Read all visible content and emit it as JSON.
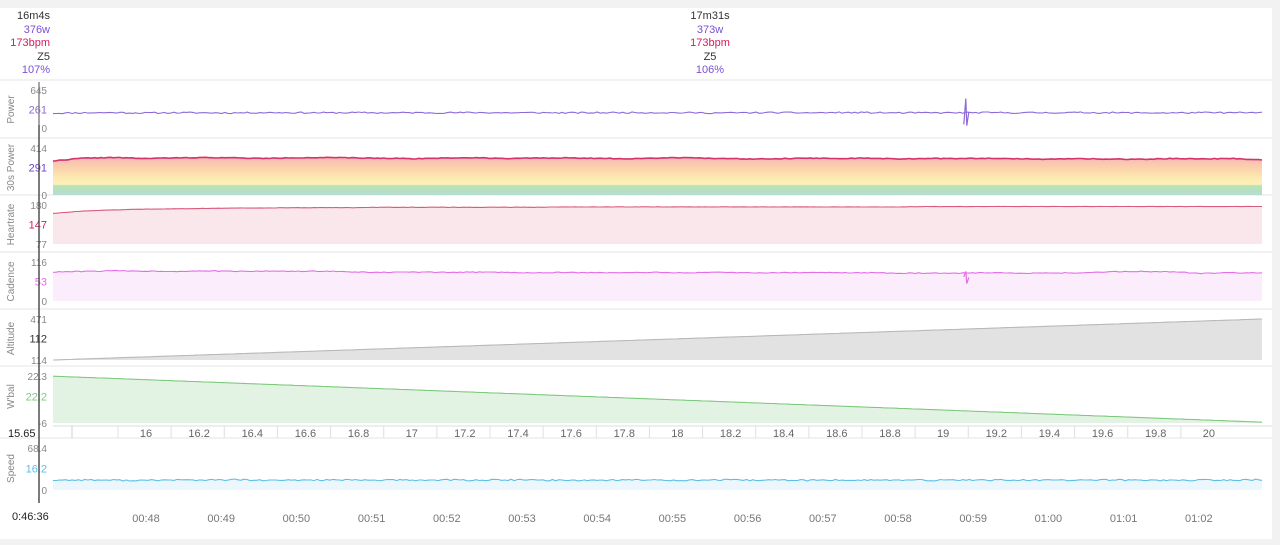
{
  "header": {
    "left": {
      "time": "16m4s",
      "power": "376w",
      "hr": "173bpm",
      "zone": "Z5",
      "pct": "107%"
    },
    "mid": {
      "time": "17m31s",
      "power": "373w",
      "hr": "173bpm",
      "zone": "Z5",
      "pct": "106%"
    }
  },
  "cursor_time_label": "0:46:36",
  "distance_cursor_label": "15.65",
  "colors": {
    "power": "#8e6ad8",
    "power30": "#d6336c",
    "heartrate": "#d95b7e",
    "cadence": "#e36ee8",
    "altitude": "#b9b9b9",
    "wbal": "#7fc97f",
    "speed": "#5bbfe6"
  },
  "chart_data": [
    {
      "type": "line",
      "key": "power",
      "ylabel": "Power",
      "ytick_top": "645",
      "ytick_bottom": "0",
      "current_value": "261",
      "ylim": [
        0,
        645
      ],
      "noise": 12,
      "seed": 11,
      "values": [
        250,
        258,
        262,
        255,
        260,
        258,
        256,
        262,
        260,
        258,
        261,
        257,
        260,
        259,
        262,
        258,
        260,
        257,
        259,
        262,
        260,
        258,
        256,
        259,
        261,
        258,
        262,
        260,
        257,
        258,
        259,
        261,
        258,
        260,
        262,
        259,
        258,
        256,
        260,
        259,
        261
      ],
      "spikes": [
        {
          "x": 0.755,
          "min": 40,
          "max": 500
        }
      ]
    },
    {
      "type": "area",
      "key": "power30",
      "ylabel": "30s Power",
      "ytick_top": "414",
      "ytick_bottom": "0",
      "current_value": "291",
      "ylim": [
        0,
        414
      ],
      "noise": 3,
      "seed": 22,
      "values": [
        300,
        325,
        330,
        322,
        326,
        330,
        327,
        322,
        328,
        330,
        326,
        324,
        320,
        326,
        328,
        322,
        325,
        327,
        323,
        320,
        326,
        329,
        322,
        318,
        320,
        325,
        322,
        324,
        318,
        322,
        320,
        324,
        319,
        315,
        320,
        316,
        314,
        322,
        318,
        322,
        310
      ]
    },
    {
      "type": "area",
      "key": "heartrate",
      "ylabel": "Heartrate",
      "ytick_top": "180",
      "ytick_bottom": "77",
      "current_value": "147",
      "ylim": [
        77,
        180
      ],
      "noise": 0.4,
      "seed": 33,
      "values": [
        158,
        164,
        167,
        169,
        170,
        171,
        172,
        172,
        173,
        173,
        173,
        174,
        174,
        174,
        174,
        174,
        174,
        175,
        175,
        175,
        175,
        175,
        175,
        175,
        175,
        175,
        175,
        175,
        175,
        176,
        176,
        176,
        176,
        176,
        176,
        176,
        176,
        176,
        176,
        176,
        176
      ]
    },
    {
      "type": "area",
      "key": "cadence",
      "ylabel": "Cadence",
      "ytick_top": "116",
      "ytick_bottom": "0",
      "current_value": "53",
      "ylim": [
        0,
        116
      ],
      "noise": 1.2,
      "seed": 44,
      "values": [
        86,
        88,
        90,
        89,
        88,
        90,
        88,
        89,
        88,
        89,
        86,
        85,
        86,
        85,
        86,
        85,
        84,
        85,
        84,
        85,
        85,
        84,
        85,
        84,
        84,
        85,
        84,
        84,
        83,
        83,
        83,
        84,
        83,
        83,
        84,
        87,
        88,
        87,
        82,
        84,
        83
      ],
      "spikes": [
        {
          "x": 0.755,
          "min": 52,
          "max": 88
        }
      ]
    },
    {
      "type": "area",
      "key": "altitude",
      "ylabel": "Altitude",
      "ytick_top": "471",
      "ytick_bottom": "114",
      "current_value": "112",
      "ylim": [
        114,
        471
      ],
      "noise": 0,
      "seed": 55,
      "values": [
        114,
        471
      ]
    },
    {
      "type": "area",
      "key": "wbal",
      "ylabel": "W'bal",
      "ytick_top": "22.3",
      "ytick_bottom": "-6",
      "current_value": "22.2",
      "ylim": [
        -6,
        22.3
      ],
      "noise": 0,
      "seed": 66,
      "values": [
        22.2,
        -5.5
      ]
    },
    {
      "type": "line",
      "key": "speed",
      "ylabel": "Speed",
      "ytick_top": "68.4",
      "ytick_bottom": "0",
      "current_value": "16.2",
      "ylim": [
        0,
        68.4
      ],
      "noise": 1.2,
      "seed": 77,
      "values": [
        16,
        16.5,
        16,
        15.5,
        16.5,
        16,
        16.8,
        15.5,
        16,
        16.5,
        16,
        16.2,
        15.8,
        16.4,
        16,
        16.5,
        16.2,
        15.8,
        16,
        16.4,
        16.2,
        15.9,
        16.3,
        16,
        16.2,
        15.8,
        16.1,
        16.3,
        16,
        15.9,
        16.2,
        16.4,
        16.1,
        15.8,
        16.2,
        16.3,
        16.1,
        15.8,
        16.2,
        16,
        16.8
      ]
    }
  ],
  "distance_axis": {
    "ticks": [
      "16",
      "16.2",
      "16.4",
      "16.6",
      "16.8",
      "17",
      "17.2",
      "17.4",
      "17.6",
      "17.8",
      "18",
      "18.2",
      "18.4",
      "18.6",
      "18.8",
      "19",
      "19.2",
      "19.4",
      "19.6",
      "19.8",
      "20"
    ],
    "range": [
      15.65,
      20.2
    ]
  },
  "time_axis": {
    "ticks": [
      "00:48",
      "00:49",
      "00:50",
      "00:51",
      "00:52",
      "00:53",
      "00:54",
      "00:55",
      "00:56",
      "00:57",
      "00:58",
      "00:59",
      "01:00",
      "01:01",
      "01:02"
    ]
  }
}
